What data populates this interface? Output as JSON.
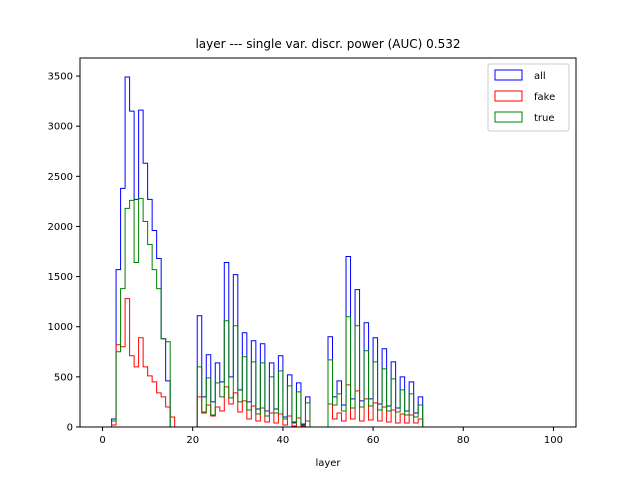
{
  "chart_data": {
    "type": "histogram-step",
    "title": "layer --- single var. discr. power (AUC) 0.532",
    "xlabel": "layer",
    "ylabel": "",
    "xlim": [
      -5,
      105
    ],
    "ylim": [
      0,
      3680
    ],
    "xticks": [
      0,
      20,
      40,
      60,
      80,
      100
    ],
    "yticks": [
      0,
      500,
      1000,
      1500,
      2000,
      2500,
      3000,
      3500
    ],
    "grid": false,
    "legend_position": "top-right",
    "bins": [
      2,
      3,
      4,
      5,
      6,
      7,
      8,
      9,
      10,
      11,
      12,
      13,
      14,
      15,
      16,
      17,
      18,
      19,
      20,
      21,
      22,
      23,
      24,
      25,
      26,
      27,
      28,
      29,
      30,
      31,
      32,
      33,
      34,
      35,
      36,
      37,
      38,
      39,
      40,
      41,
      42,
      43,
      44,
      45,
      46,
      47,
      48,
      49,
      50,
      51,
      52,
      53,
      54,
      55,
      56,
      57,
      58,
      59,
      60,
      61,
      62,
      63,
      64,
      65,
      66,
      67,
      68,
      69,
      70,
      71,
      72
    ],
    "series": [
      {
        "name": "all",
        "color": "#0000ff",
        "values": [
          80,
          1570,
          2380,
          3490,
          3150,
          2270,
          3160,
          2630,
          2270,
          1960,
          1680,
          880,
          460,
          0,
          0,
          0,
          0,
          0,
          0,
          1110,
          300,
          720,
          250,
          640,
          450,
          1640,
          500,
          1520,
          370,
          940,
          250,
          860,
          180,
          830,
          160,
          640,
          180,
          710,
          100,
          520,
          50,
          440,
          30,
          300,
          0,
          0,
          0,
          0,
          900,
          300,
          460,
          220,
          1700,
          280,
          1370,
          260,
          1040,
          280,
          890,
          230,
          780,
          210,
          650,
          190,
          500,
          160,
          450,
          140,
          300,
          0,
          0
        ]
      },
      {
        "name": "fake",
        "color": "#ff0000",
        "values": [
          20,
          820,
          800,
          1280,
          710,
          600,
          890,
          600,
          510,
          450,
          340,
          300,
          200,
          100,
          0,
          0,
          0,
          0,
          0,
          300,
          140,
          220,
          110,
          200,
          160,
          400,
          230,
          340,
          150,
          260,
          80,
          210,
          60,
          190,
          50,
          140,
          40,
          130,
          20,
          110,
          10,
          90,
          10,
          60,
          0,
          0,
          0,
          0,
          230,
          80,
          140,
          60,
          420,
          80,
          360,
          60,
          280,
          70,
          240,
          60,
          200,
          50,
          170,
          40,
          130,
          40,
          120,
          40,
          80,
          0,
          0
        ]
      },
      {
        "name": "true",
        "color": "#008000",
        "values": [
          60,
          750,
          1380,
          2180,
          2260,
          1640,
          2280,
          2050,
          1820,
          1570,
          1380,
          880,
          850,
          0,
          0,
          0,
          0,
          0,
          0,
          600,
          150,
          490,
          120,
          440,
          300,
          1060,
          290,
          1010,
          250,
          700,
          170,
          650,
          130,
          640,
          110,
          500,
          140,
          560,
          80,
          410,
          40,
          350,
          20,
          240,
          0,
          0,
          0,
          0,
          670,
          220,
          330,
          160,
          1100,
          190,
          1010,
          200,
          760,
          210,
          650,
          170,
          580,
          160,
          480,
          150,
          370,
          120,
          330,
          100,
          220,
          0,
          0
        ]
      }
    ]
  }
}
